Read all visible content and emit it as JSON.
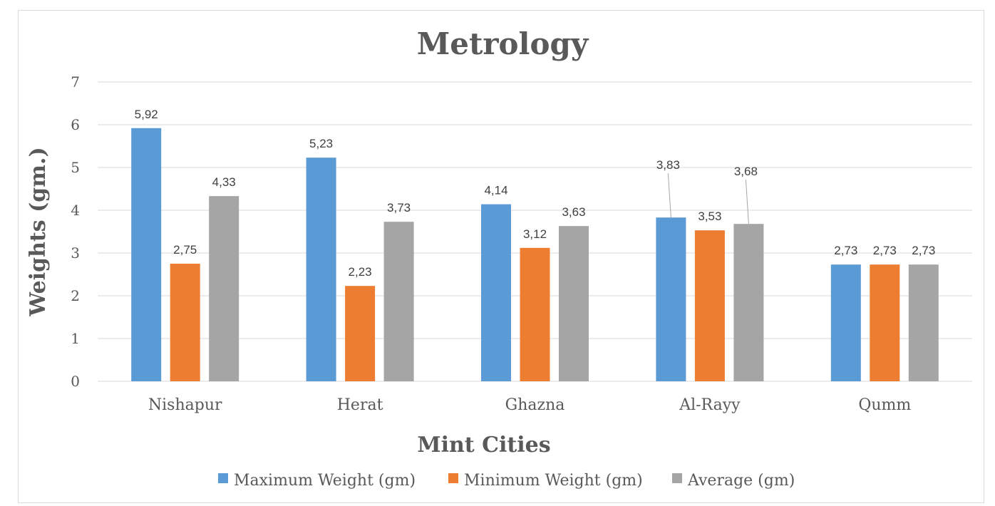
{
  "chart_data": {
    "type": "bar",
    "title": "Metrology",
    "xlabel": "Mint Cities",
    "ylabel": "Weights (gm.)",
    "categories": [
      "Nishapur",
      "Herat",
      "Ghazna",
      "Al-Rayy",
      "Qumm"
    ],
    "series": [
      {
        "name": "Maximum Weight (gm)",
        "color": "#5b9bd5",
        "values": [
          5.92,
          5.23,
          4.14,
          3.83,
          2.73
        ],
        "labels": [
          "5,92",
          "5,23",
          "4,14",
          "3,83",
          "2,73"
        ]
      },
      {
        "name": "Minimum Weight (gm)",
        "color": "#ed7d31",
        "values": [
          2.75,
          2.23,
          3.12,
          3.53,
          2.73
        ],
        "labels": [
          "2,75",
          "2,23",
          "3,12",
          "3,53",
          "2,73"
        ]
      },
      {
        "name": "Average (gm)",
        "color": "#a5a5a5",
        "values": [
          4.33,
          3.73,
          3.63,
          3.68,
          2.73
        ],
        "labels": [
          "4,33",
          "3,73",
          "3,63",
          "3,68",
          "2,73"
        ]
      }
    ],
    "ylim": [
      0,
      7
    ],
    "yticks": [
      "0",
      "1",
      "2",
      "3",
      "4",
      "5",
      "6",
      "7"
    ],
    "grid": true,
    "legend_position": "bottom",
    "gridline_color": "#d9d9d9"
  }
}
